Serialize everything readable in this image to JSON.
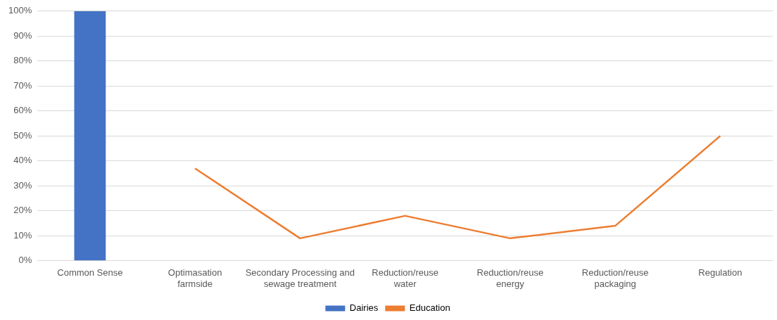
{
  "chart_data": {
    "type": "bar",
    "categories": [
      "Common Sense",
      "Optimasation farmside",
      "Secondary Processing and sewage treatment",
      "Reduction/reuse water",
      "Reduction/reuse energy",
      "Reduction/reuse packaging",
      "Regulation"
    ],
    "series": [
      {
        "name": "Dairies",
        "color": "#4472c4",
        "values": [
          100,
          null,
          null,
          null,
          null,
          null,
          null
        ]
      },
      {
        "name": "Education",
        "type": "line",
        "color": "#ed7d31",
        "values": [
          null,
          37,
          9,
          18,
          9,
          14,
          50
        ]
      }
    ],
    "ylim": [
      0,
      100
    ],
    "yticks": [
      {
        "value": 0,
        "label": "0%"
      },
      {
        "value": 10,
        "label": "10%"
      },
      {
        "value": 20,
        "label": "20%"
      },
      {
        "value": 30,
        "label": "30%"
      },
      {
        "value": 40,
        "label": "40%"
      },
      {
        "value": 50,
        "label": "50%"
      },
      {
        "value": 60,
        "label": "60%"
      },
      {
        "value": 70,
        "label": "70%"
      },
      {
        "value": 80,
        "label": "80%"
      },
      {
        "value": 90,
        "label": "90%"
      },
      {
        "value": 100,
        "label": "100%"
      }
    ],
    "grid": "y",
    "legend": "bottom",
    "marker": "none"
  }
}
